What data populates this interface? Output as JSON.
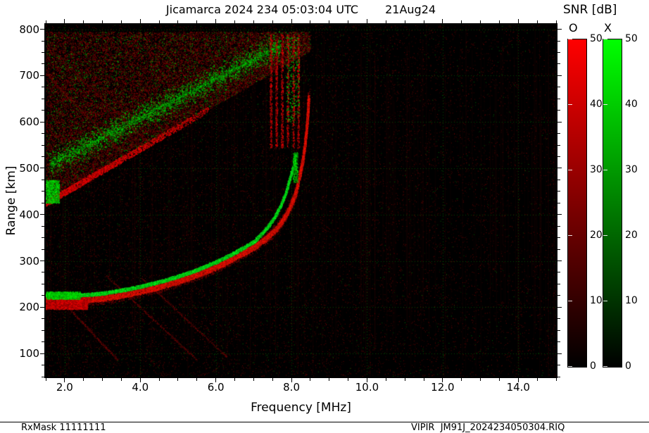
{
  "header": {
    "title": "Jicamarca 2024 234 05:03:04 UTC",
    "date": "21Aug24"
  },
  "colorbar": {
    "label": "SNR [dB]",
    "o_label": "O",
    "x_label": "X",
    "range": [
      0,
      50
    ],
    "ticks": [
      0,
      10,
      20,
      30,
      40,
      50
    ],
    "o_gradient": [
      "#000000",
      "#ff0000"
    ],
    "x_gradient": [
      "#000000",
      "#00ff00"
    ]
  },
  "footer": {
    "rxmask": "RxMask 11111111",
    "filename": "VIPIR  JM91J_2024234050304.RIQ"
  },
  "chart_data": {
    "type": "heatmap",
    "title": "Jicamarca 2024 234 05:03:04 UTC",
    "subtitle": "21Aug24",
    "xlabel": "Frequency [MHz]",
    "ylabel": "Range [km]",
    "xlim": [
      1.5,
      15.0
    ],
    "ylim": [
      50,
      810
    ],
    "xticks": [
      2.0,
      4.0,
      6.0,
      8.0,
      10.0,
      12.0,
      14.0
    ],
    "yticks": [
      100,
      200,
      300,
      400,
      500,
      600,
      700,
      800
    ],
    "x_minor_step": 0.5,
    "y_minor_step": 25,
    "grid": true,
    "grid_color": "rgba(0,150,0,0.45)",
    "background": "#000000",
    "legend": {
      "O": "#ff0000",
      "X": "#00ff00"
    },
    "o_critical_frequency_mhz": 8.45,
    "x_critical_frequency_mhz": 8.12,
    "base_virtual_height_km": 215,
    "o_trace": [
      [
        1.5,
        213
      ],
      [
        2.0,
        214
      ],
      [
        2.5,
        216
      ],
      [
        3.0,
        219
      ],
      [
        3.5,
        226
      ],
      [
        4.0,
        234
      ],
      [
        4.5,
        244
      ],
      [
        5.0,
        256
      ],
      [
        5.5,
        270
      ],
      [
        6.0,
        287
      ],
      [
        6.5,
        307
      ],
      [
        7.0,
        330
      ],
      [
        7.3,
        347
      ],
      [
        7.6,
        370
      ],
      [
        7.8,
        392
      ],
      [
        7.95,
        415
      ],
      [
        8.1,
        445
      ],
      [
        8.2,
        480
      ],
      [
        8.3,
        520
      ],
      [
        8.37,
        565
      ],
      [
        8.42,
        610
      ],
      [
        8.45,
        655
      ]
    ],
    "x_trace": [
      [
        1.5,
        224
      ],
      [
        2.0,
        225
      ],
      [
        2.5,
        227
      ],
      [
        3.0,
        230
      ],
      [
        3.5,
        237
      ],
      [
        4.0,
        245
      ],
      [
        4.5,
        255
      ],
      [
        5.0,
        267
      ],
      [
        5.5,
        281
      ],
      [
        6.0,
        298
      ],
      [
        6.5,
        318
      ],
      [
        7.0,
        342
      ],
      [
        7.2,
        358
      ],
      [
        7.4,
        377
      ],
      [
        7.55,
        395
      ],
      [
        7.7,
        418
      ],
      [
        7.85,
        448
      ],
      [
        7.95,
        478
      ],
      [
        8.05,
        505
      ],
      [
        8.1,
        530
      ]
    ],
    "spread_f": {
      "f_start": 1.5,
      "f_end": 8.5,
      "km_at_start": 425,
      "km_slope_per_mhz": 47,
      "km_top": 795,
      "green_line_km0": 505,
      "green_line_slope": 42
    },
    "oblique_lines": [
      [
        3.1,
        268,
        5.5,
        86
      ],
      [
        4.05,
        262,
        6.3,
        92
      ],
      [
        2.0,
        208,
        3.4,
        86
      ],
      [
        1.55,
        760,
        4.3,
        548
      ],
      [
        1.5,
        705,
        3.6,
        525
      ]
    ]
  }
}
